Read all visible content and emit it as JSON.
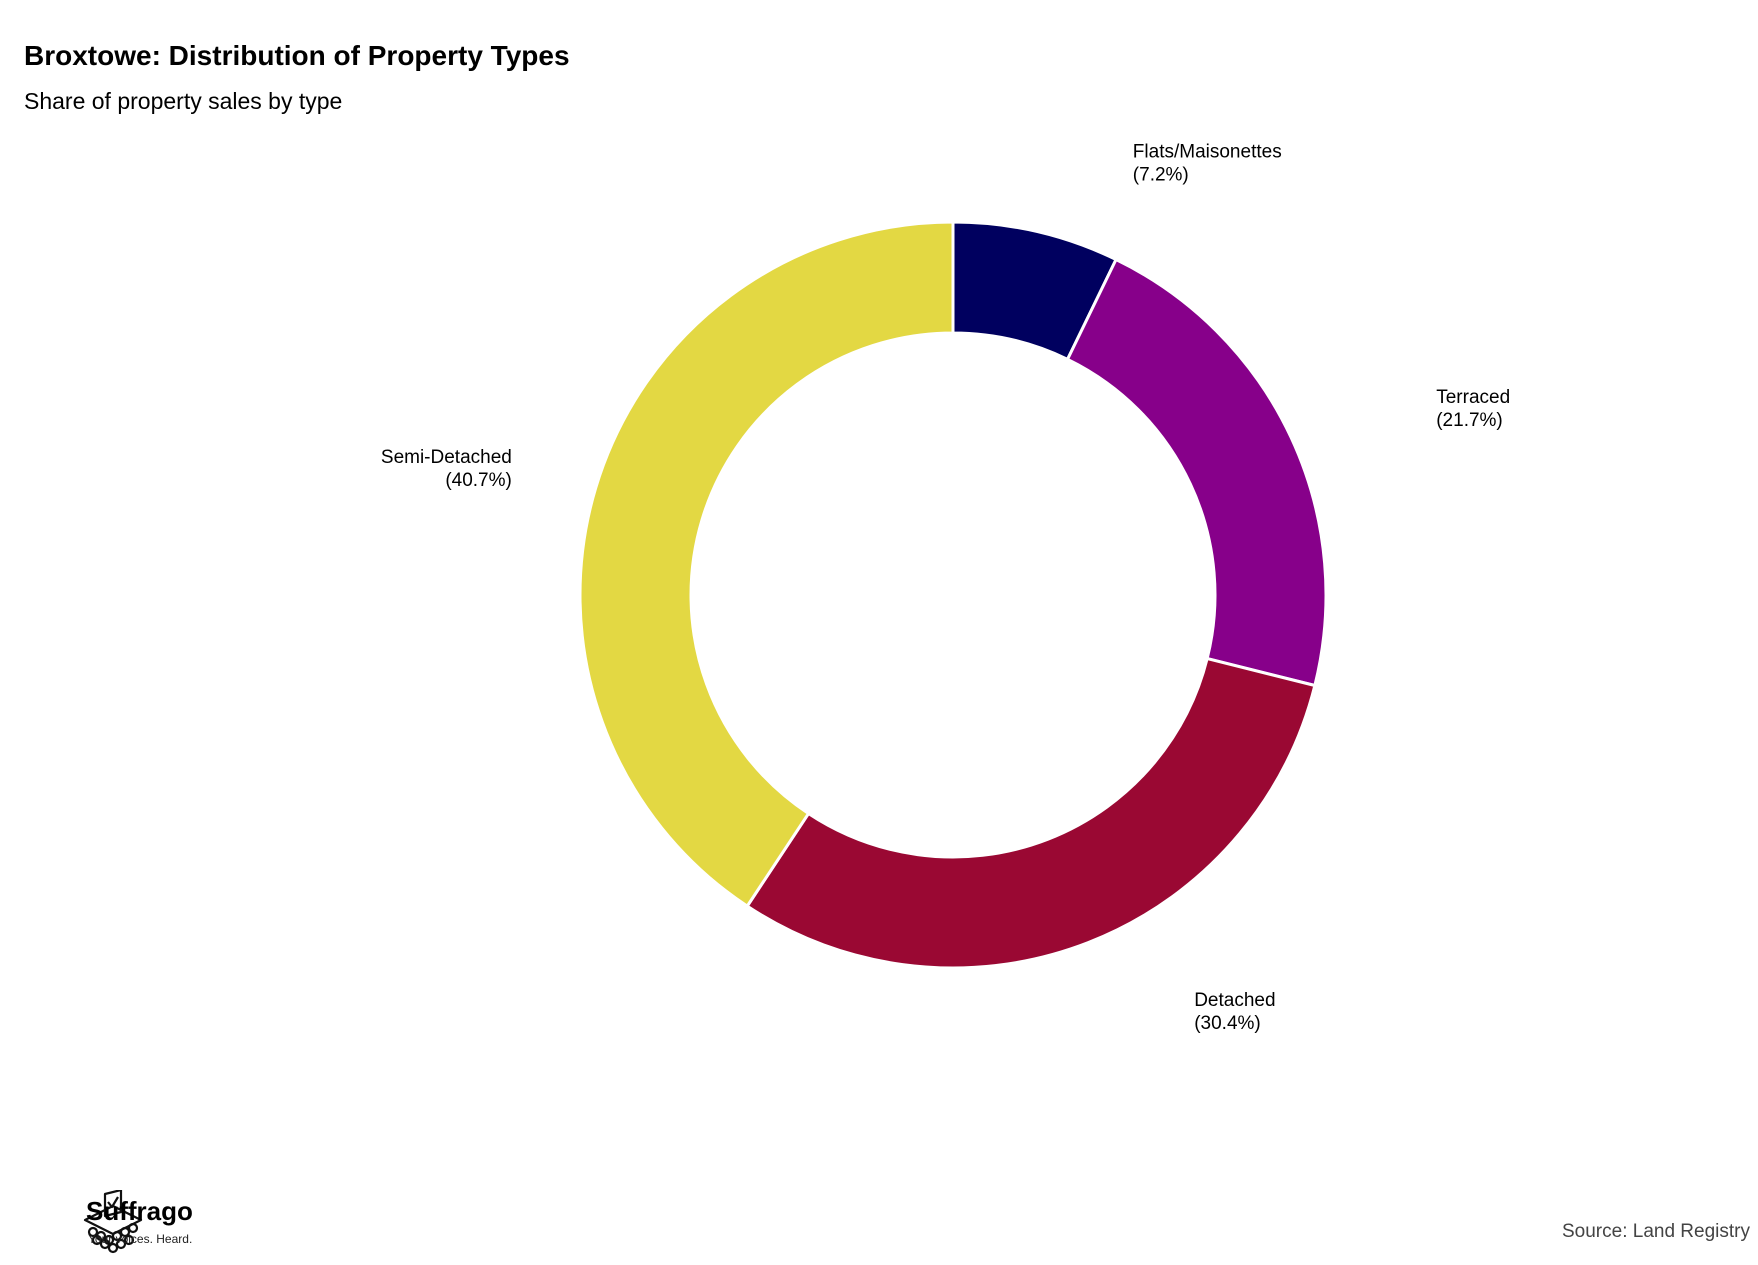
{
  "chart_data": {
    "type": "pie",
    "title": "Broxtowe: Distribution of Property Types",
    "subtitle": "Share of property sales by type",
    "donut": true,
    "legend": "none",
    "categories": [
      "Flats/Maisonettes",
      "Terraced",
      "Detached",
      "Semi-Detached"
    ],
    "values": [
      7.2,
      21.7,
      30.4,
      40.7
    ],
    "value_labels": [
      "(7.2%)",
      "(21.7%)",
      "(30.4%)",
      "(40.7%)"
    ],
    "colors": [
      "#00005F",
      "#87008A",
      "#9A0833",
      "#E3D843"
    ]
  },
  "branding": {
    "logo_name": "Suffrago",
    "tagline": "Your voices. Heard.",
    "logo_icon": "ballot-box-icon"
  },
  "source": "Source: Land Registry"
}
